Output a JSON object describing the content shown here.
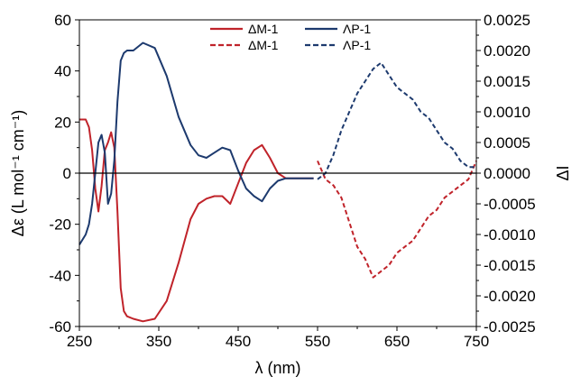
{
  "chart_data": {
    "type": "line",
    "xlabel": "λ (nm)",
    "ylabel_left": "Δε (L mol⁻¹ cm⁻¹)",
    "ylabel_right": "ΔI",
    "xlim": [
      250,
      750
    ],
    "ylim_left": [
      -60,
      60
    ],
    "ylim_right": [
      -0.0025,
      0.0025
    ],
    "x_ticks": [
      250,
      350,
      450,
      550,
      650,
      750
    ],
    "y_left_ticks": [
      -60,
      -40,
      -20,
      0,
      20,
      40,
      60
    ],
    "y_right_ticks": [
      "-0.0025",
      "-0.0020",
      "-0.0015",
      "-0.0010",
      "-0.0005",
      "0.0000",
      "0.0005",
      "0.0010",
      "0.0015",
      "0.0020",
      "0.0025"
    ],
    "y_right_values": [
      -0.0025,
      -0.002,
      -0.0015,
      -0.001,
      -0.0005,
      0,
      0.0005,
      0.001,
      0.0015,
      0.002,
      0.0025
    ],
    "grid": false,
    "legend_position": "top-center",
    "colors": {
      "red": "#c0232a",
      "blue": "#1d3a6e"
    },
    "series": [
      {
        "name": "ΔM-1",
        "axis": "left",
        "style": "solid",
        "color": "#c0232a",
        "x": [
          250,
          258,
          262,
          266,
          270,
          274,
          278,
          282,
          286,
          290,
          294,
          298,
          302,
          306,
          310,
          318,
          330,
          345,
          360,
          375,
          390,
          400,
          410,
          420,
          430,
          440,
          450,
          460,
          470,
          480,
          490,
          500,
          510,
          520,
          530,
          545
        ],
        "y": [
          21,
          21,
          18,
          9,
          -6,
          -15,
          -5,
          9,
          12,
          16,
          10,
          -15,
          -45,
          -54,
          -56,
          -57,
          -58,
          -57,
          -50,
          -35,
          -18,
          -12,
          -10,
          -9,
          -9,
          -12,
          -4,
          4,
          9,
          11,
          6,
          0,
          -2,
          -2,
          -2,
          -2
        ]
      },
      {
        "name": "ΛP-1",
        "axis": "left",
        "style": "solid",
        "color": "#1d3a6e",
        "x": [
          250,
          258,
          262,
          266,
          270,
          274,
          278,
          282,
          286,
          290,
          294,
          298,
          302,
          306,
          310,
          318,
          330,
          345,
          360,
          375,
          390,
          400,
          410,
          420,
          430,
          440,
          450,
          460,
          470,
          480,
          490,
          500,
          510,
          520,
          530,
          545
        ],
        "y": [
          -28,
          -24,
          -20,
          -12,
          0,
          12,
          15,
          8,
          -12,
          -8,
          5,
          28,
          44,
          47,
          48,
          48,
          51,
          49,
          38,
          22,
          11,
          7,
          6,
          8,
          10,
          9,
          1,
          -6,
          -9,
          -11,
          -6,
          -3,
          -2,
          -2,
          -2,
          -2
        ]
      },
      {
        "name": "ΔM-1",
        "axis": "right",
        "style": "dashed",
        "color": "#c0232a",
        "x": [
          550,
          560,
          570,
          580,
          590,
          600,
          610,
          620,
          630,
          640,
          650,
          660,
          670,
          680,
          690,
          700,
          710,
          720,
          730,
          740,
          750
        ],
        "y": [
          0.0002,
          -0.0001,
          -0.0002,
          -0.0004,
          -0.0008,
          -0.0012,
          -0.0014,
          -0.0017,
          -0.0016,
          -0.0015,
          -0.0013,
          -0.0012,
          -0.0011,
          -0.0009,
          -0.0007,
          -0.0006,
          -0.0004,
          -0.0003,
          -0.0002,
          -0.0001,
          0.0002
        ]
      },
      {
        "name": "ΛP-1",
        "axis": "right",
        "style": "dashed",
        "color": "#1d3a6e",
        "x": [
          550,
          560,
          570,
          580,
          590,
          600,
          610,
          620,
          630,
          640,
          650,
          660,
          670,
          680,
          690,
          700,
          710,
          720,
          730,
          740,
          750
        ],
        "y": [
          -0.0001,
          0.0,
          0.0003,
          0.0007,
          0.001,
          0.0013,
          0.0015,
          0.0017,
          0.0018,
          0.0016,
          0.0014,
          0.0013,
          0.0012,
          0.001,
          0.0009,
          0.0007,
          0.0005,
          0.0004,
          0.0002,
          0.0001,
          0.0001
        ]
      }
    ]
  }
}
